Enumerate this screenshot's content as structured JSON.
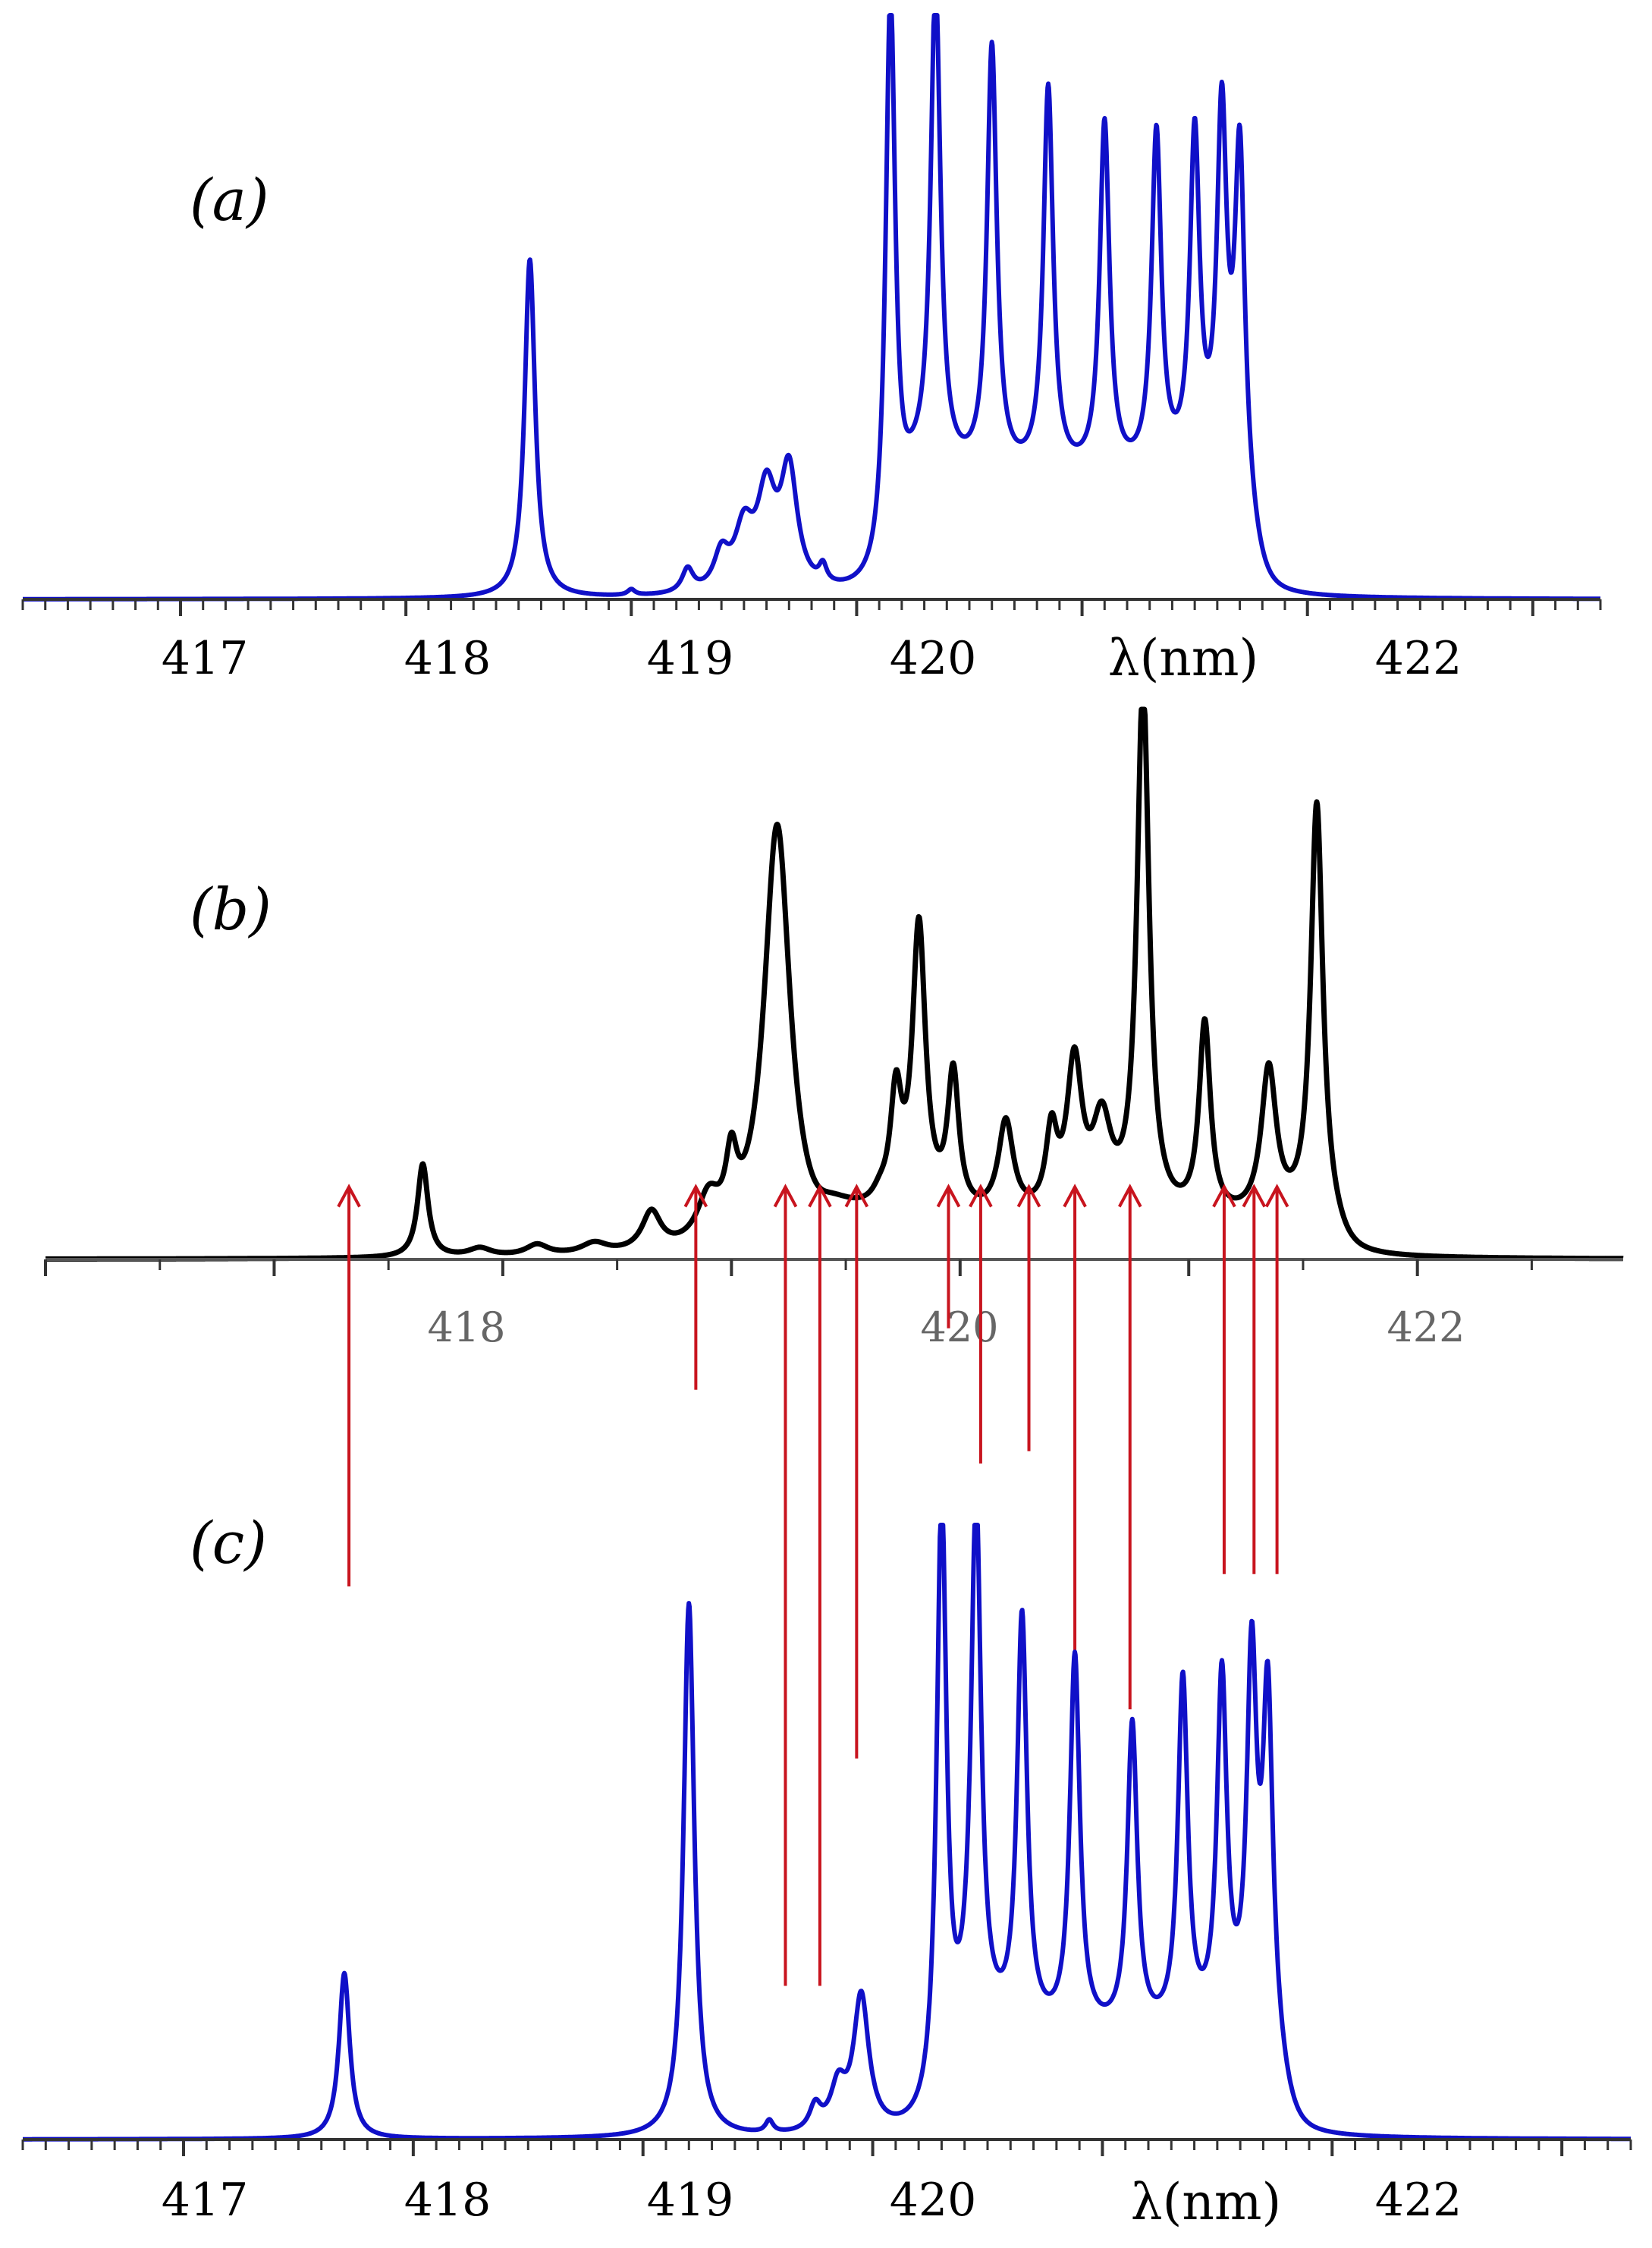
{
  "chart_data": [
    {
      "type": "line",
      "label": "(a)",
      "xlabel": "λ(nm)",
      "xlim": [
        416.3,
        423.3
      ],
      "ylim": [
        0,
        1.0
      ],
      "xticks": [
        "417",
        "418",
        "419",
        "420",
        "422"
      ],
      "series": [
        {
          "color": "#1010c8",
          "peaks": [
            {
              "x": 418.55,
              "h": 0.58,
              "w": 0.028
            },
            {
              "x": 419.0,
              "h": 0.01,
              "w": 0.02
            },
            {
              "x": 419.25,
              "h": 0.04,
              "w": 0.03
            },
            {
              "x": 419.4,
              "h": 0.06,
              "w": 0.04
            },
            {
              "x": 419.5,
              "h": 0.1,
              "w": 0.05
            },
            {
              "x": 419.6,
              "h": 0.16,
              "w": 0.05
            },
            {
              "x": 419.7,
              "h": 0.2,
              "w": 0.045
            },
            {
              "x": 419.85,
              "h": 0.03,
              "w": 0.02
            },
            {
              "x": 420.15,
              "h": 0.99,
              "w": 0.026
            },
            {
              "x": 420.35,
              "h": 0.84,
              "w": 0.026
            },
            {
              "x": 420.6,
              "h": 0.73,
              "w": 0.026
            },
            {
              "x": 420.85,
              "h": 0.66,
              "w": 0.026
            },
            {
              "x": 421.1,
              "h": 0.6,
              "w": 0.026
            },
            {
              "x": 421.33,
              "h": 0.58,
              "w": 0.026
            },
            {
              "x": 421.5,
              "h": 0.57,
              "w": 0.026
            },
            {
              "x": 421.62,
              "h": 0.6,
              "w": 0.026
            },
            {
              "x": 421.7,
              "h": 0.57,
              "w": 0.026
            }
          ],
          "plateau": {
            "x0": 420.2,
            "x1": 421.75,
            "h": 0.2
          }
        }
      ]
    },
    {
      "type": "line",
      "label": "(b)",
      "xlim": [
        416.0,
        422.9
      ],
      "ylim": [
        0,
        1.0
      ],
      "xticks": [
        "418",
        "420",
        "422"
      ],
      "series": [
        {
          "color": "#000000",
          "peaks": [
            {
              "x": 417.65,
              "h": 0.17,
              "w": 0.028
            },
            {
              "x": 417.9,
              "h": 0.015,
              "w": 0.06
            },
            {
              "x": 418.15,
              "h": 0.02,
              "w": 0.06
            },
            {
              "x": 418.4,
              "h": 0.02,
              "w": 0.07
            },
            {
              "x": 418.65,
              "h": 0.07,
              "w": 0.05
            },
            {
              "x": 418.9,
              "h": 0.08,
              "w": 0.06
            },
            {
              "x": 419.0,
              "h": 0.12,
              "w": 0.03
            },
            {
              "x": 419.2,
              "h": 0.78,
              "w": 0.07
            },
            {
              "x": 419.65,
              "h": 0.02,
              "w": 0.04
            },
            {
              "x": 419.72,
              "h": 0.2,
              "w": 0.03
            },
            {
              "x": 419.82,
              "h": 0.52,
              "w": 0.035
            },
            {
              "x": 419.97,
              "h": 0.25,
              "w": 0.03
            },
            {
              "x": 420.2,
              "h": 0.17,
              "w": 0.04
            },
            {
              "x": 420.4,
              "h": 0.14,
              "w": 0.03
            },
            {
              "x": 420.5,
              "h": 0.27,
              "w": 0.04
            },
            {
              "x": 420.62,
              "h": 0.16,
              "w": 0.05
            },
            {
              "x": 420.8,
              "h": 0.97,
              "w": 0.032
            },
            {
              "x": 421.07,
              "h": 0.35,
              "w": 0.03
            },
            {
              "x": 421.35,
              "h": 0.27,
              "w": 0.04
            },
            {
              "x": 421.56,
              "h": 0.76,
              "w": 0.032
            }
          ],
          "plateau": {
            "x0": 419.4,
            "x1": 421.65,
            "h": 0.06
          }
        }
      ]
    },
    {
      "type": "line",
      "label": "(c)",
      "xlabel": "λ(nm)",
      "xlim": [
        416.3,
        423.3
      ],
      "ylim": [
        0,
        1.0
      ],
      "xticks": [
        "417",
        "418",
        "419",
        "420",
        "422"
      ],
      "series": [
        {
          "color": "#1010c8",
          "peaks": [
            {
              "x": 417.7,
              "h": 0.27,
              "w": 0.028
            },
            {
              "x": 419.2,
              "h": 0.87,
              "w": 0.028
            },
            {
              "x": 419.55,
              "h": 0.02,
              "w": 0.02
            },
            {
              "x": 419.75,
              "h": 0.04,
              "w": 0.03
            },
            {
              "x": 419.85,
              "h": 0.07,
              "w": 0.04
            },
            {
              "x": 419.95,
              "h": 0.22,
              "w": 0.04
            },
            {
              "x": 420.3,
              "h": 1.0,
              "w": 0.026
            },
            {
              "x": 420.45,
              "h": 0.86,
              "w": 0.026
            },
            {
              "x": 420.65,
              "h": 0.67,
              "w": 0.026
            },
            {
              "x": 420.88,
              "h": 0.61,
              "w": 0.026
            },
            {
              "x": 421.13,
              "h": 0.5,
              "w": 0.026
            },
            {
              "x": 421.35,
              "h": 0.57,
              "w": 0.026
            },
            {
              "x": 421.52,
              "h": 0.57,
              "w": 0.026
            },
            {
              "x": 421.65,
              "h": 0.59,
              "w": 0.026
            },
            {
              "x": 421.72,
              "h": 0.55,
              "w": 0.026
            }
          ],
          "plateau": {
            "x0": 420.35,
            "x1": 421.78,
            "h": 0.16
          }
        }
      ],
      "arrows": [
        {
          "x": 417.72,
          "from": 0.9,
          "to": 1.55
        },
        {
          "x": 419.23,
          "from": 1.22,
          "to": 1.55
        },
        {
          "x": 419.62,
          "from": 0.25,
          "to": 1.55
        },
        {
          "x": 419.77,
          "from": 0.25,
          "to": 1.55
        },
        {
          "x": 419.93,
          "from": 0.62,
          "to": 1.55
        },
        {
          "x": 420.33,
          "from": 1.32,
          "to": 1.55
        },
        {
          "x": 420.47,
          "from": 1.1,
          "to": 1.55
        },
        {
          "x": 420.68,
          "from": 1.12,
          "to": 1.55
        },
        {
          "x": 420.88,
          "from": 0.79,
          "to": 1.55
        },
        {
          "x": 421.12,
          "from": 0.7,
          "to": 1.55
        },
        {
          "x": 421.53,
          "from": 0.92,
          "to": 1.55
        },
        {
          "x": 421.66,
          "from": 0.92,
          "to": 1.55
        },
        {
          "x": 421.76,
          "from": 0.92,
          "to": 1.55
        }
      ]
    }
  ]
}
